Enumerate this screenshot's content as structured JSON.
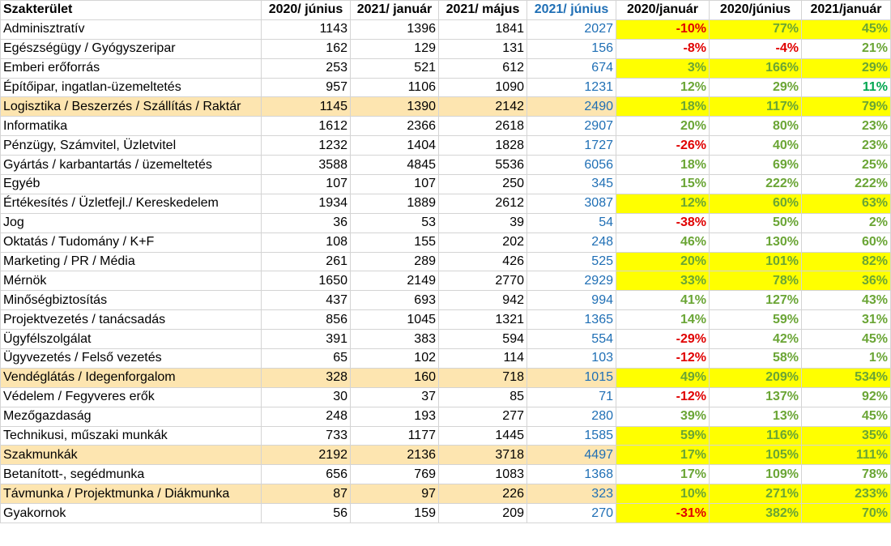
{
  "headers": [
    "Szakterület",
    "2020/ június",
    "2021/ január",
    "2021/ május",
    "2021/ június",
    "2020/január",
    "2020/június",
    "2021/január"
  ],
  "rows": [
    {
      "name": "Adminisztratív",
      "v": [
        "1143",
        "1396",
        "1841",
        "2027"
      ],
      "p": [
        "-10%",
        "77%",
        "45%"
      ],
      "yellow": [
        true,
        true,
        true
      ],
      "row_highlight": false
    },
    {
      "name": "Egészségügy / Gyógyszeripar",
      "v": [
        "162",
        "129",
        "131",
        "156"
      ],
      "p": [
        "-8%",
        "-4%",
        "21%"
      ],
      "yellow": [
        false,
        false,
        false
      ],
      "row_highlight": false
    },
    {
      "name": "Emberi erőforrás",
      "v": [
        "253",
        "521",
        "612",
        "674"
      ],
      "p": [
        "3%",
        "166%",
        "29%"
      ],
      "yellow": [
        true,
        true,
        true
      ],
      "row_highlight": false
    },
    {
      "name": "Építőipar, ingatlan-üzemeltetés",
      "v": [
        "957",
        "1106",
        "1090",
        "1231"
      ],
      "p": [
        "12%",
        "29%",
        "11%"
      ],
      "yellow": [
        false,
        false,
        false
      ],
      "row_highlight": false
    },
    {
      "name": "Logisztika / Beszerzés / Szállítás / Raktár",
      "v": [
        "1145",
        "1390",
        "2142",
        "2490"
      ],
      "p": [
        "18%",
        "117%",
        "79%"
      ],
      "yellow": [
        true,
        true,
        true
      ],
      "row_highlight": true
    },
    {
      "name": "Informatika",
      "v": [
        "1612",
        "2366",
        "2618",
        "2907"
      ],
      "p": [
        "20%",
        "80%",
        "23%"
      ],
      "yellow": [
        false,
        false,
        false
      ],
      "row_highlight": false
    },
    {
      "name": "Pénzügy, Számvitel, Üzletvitel",
      "v": [
        "1232",
        "1404",
        "1828",
        "1727"
      ],
      "p": [
        "-26%",
        "40%",
        "23%"
      ],
      "yellow": [
        false,
        false,
        false
      ],
      "row_highlight": false
    },
    {
      "name": "Gyártás / karbantartás / üzemeltetés",
      "v": [
        "3588",
        "4845",
        "5536",
        "6056"
      ],
      "p": [
        "18%",
        "69%",
        "25%"
      ],
      "yellow": [
        false,
        false,
        false
      ],
      "row_highlight": false
    },
    {
      "name": "Egyéb",
      "v": [
        "107",
        "107",
        "250",
        "345"
      ],
      "p": [
        "15%",
        "222%",
        "222%"
      ],
      "yellow": [
        false,
        false,
        false
      ],
      "row_highlight": false
    },
    {
      "name": "Értékesítés / Üzletfejl./ Kereskedelem",
      "v": [
        "1934",
        "1889",
        "2612",
        "3087"
      ],
      "p": [
        "12%",
        "60%",
        "63%"
      ],
      "yellow": [
        true,
        true,
        true
      ],
      "row_highlight": false
    },
    {
      "name": "Jog",
      "v": [
        "36",
        "53",
        "39",
        "54"
      ],
      "p": [
        "-38%",
        "50%",
        "2%"
      ],
      "yellow": [
        false,
        false,
        false
      ],
      "row_highlight": false
    },
    {
      "name": "Oktatás / Tudomány / K+F",
      "v": [
        "108",
        "155",
        "202",
        "248"
      ],
      "p": [
        "46%",
        "130%",
        "60%"
      ],
      "yellow": [
        false,
        false,
        false
      ],
      "row_highlight": false
    },
    {
      "name": "Marketing / PR / Média",
      "v": [
        "261",
        "289",
        "426",
        "525"
      ],
      "p": [
        "20%",
        "101%",
        "82%"
      ],
      "yellow": [
        true,
        true,
        true
      ],
      "row_highlight": false
    },
    {
      "name": "Mérnök",
      "v": [
        "1650",
        "2149",
        "2770",
        "2929"
      ],
      "p": [
        "33%",
        "78%",
        "36%"
      ],
      "yellow": [
        true,
        true,
        true
      ],
      "row_highlight": false
    },
    {
      "name": "Minőségbiztosítás",
      "v": [
        "437",
        "693",
        "942",
        "994"
      ],
      "p": [
        "41%",
        "127%",
        "43%"
      ],
      "yellow": [
        false,
        false,
        false
      ],
      "row_highlight": false
    },
    {
      "name": "Projektvezetés / tanácsadás",
      "v": [
        "856",
        "1045",
        "1321",
        "1365"
      ],
      "p": [
        "14%",
        "59%",
        "31%"
      ],
      "yellow": [
        false,
        false,
        false
      ],
      "row_highlight": false
    },
    {
      "name": "Ügyfélszolgálat",
      "v": [
        "391",
        "383",
        "594",
        "554"
      ],
      "p": [
        "-29%",
        "42%",
        "45%"
      ],
      "yellow": [
        false,
        false,
        false
      ],
      "row_highlight": false
    },
    {
      "name": "Ügyvezetés / Felső vezetés",
      "v": [
        "65",
        "102",
        "114",
        "103"
      ],
      "p": [
        "-12%",
        "58%",
        "1%"
      ],
      "yellow": [
        false,
        false,
        false
      ],
      "row_highlight": false
    },
    {
      "name": "Vendéglátás / Idegenforgalom",
      "v": [
        "328",
        "160",
        "718",
        "1015"
      ],
      "p": [
        "49%",
        "209%",
        "534%"
      ],
      "yellow": [
        true,
        true,
        true
      ],
      "row_highlight": true
    },
    {
      "name": "Védelem / Fegyveres erők",
      "v": [
        "30",
        "37",
        "85",
        "71"
      ],
      "p": [
        "-12%",
        "137%",
        "92%"
      ],
      "yellow": [
        false,
        false,
        false
      ],
      "row_highlight": false
    },
    {
      "name": "Mezőgazdaság",
      "v": [
        "248",
        "193",
        "277",
        "280"
      ],
      "p": [
        "39%",
        "13%",
        "45%"
      ],
      "yellow": [
        false,
        false,
        false
      ],
      "row_highlight": false
    },
    {
      "name": "Technikusi, műszaki munkák",
      "v": [
        "733",
        "1177",
        "1445",
        "1585"
      ],
      "p": [
        "59%",
        "116%",
        "35%"
      ],
      "yellow": [
        true,
        true,
        true
      ],
      "row_highlight": false
    },
    {
      "name": "Szakmunkák",
      "v": [
        "2192",
        "2136",
        "3718",
        "4497"
      ],
      "p": [
        "17%",
        "105%",
        "111%"
      ],
      "yellow": [
        true,
        true,
        true
      ],
      "row_highlight": true
    },
    {
      "name": "Betanított-, segédmunka",
      "v": [
        "656",
        "769",
        "1083",
        "1368"
      ],
      "p": [
        "17%",
        "109%",
        "78%"
      ],
      "yellow": [
        false,
        false,
        false
      ],
      "row_highlight": false
    },
    {
      "name": "Távmunka / Projektmunka / Diákmunka",
      "v": [
        "87",
        "97",
        "226",
        "323"
      ],
      "p": [
        "10%",
        "271%",
        "233%"
      ],
      "yellow": [
        true,
        true,
        true
      ],
      "row_highlight": true
    },
    {
      "name": "Gyakornok",
      "v": [
        "56",
        "159",
        "209",
        "270"
      ],
      "p": [
        "-31%",
        "382%",
        "70%"
      ],
      "yellow": [
        true,
        true,
        true
      ],
      "row_highlight": false
    }
  ],
  "colors": {
    "positive": "#6aa535",
    "negative": "#e00000",
    "accent_teal": "#00a650",
    "june_2021": "#1f6fb5",
    "yellow_fill": "#ffff00",
    "row_highlight": "#fde5b0"
  }
}
